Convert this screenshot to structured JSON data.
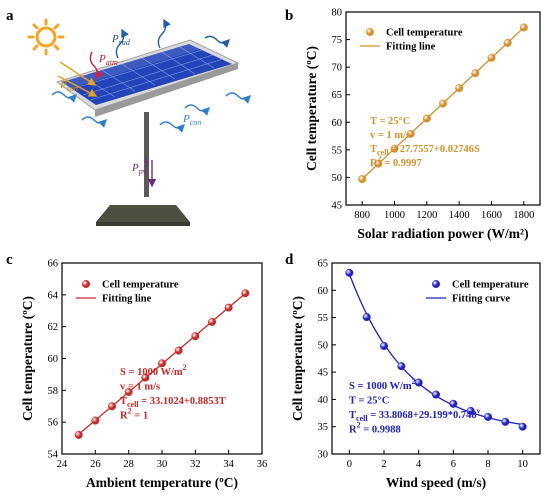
{
  "panels": [
    {
      "id": "a",
      "letter": "a"
    },
    {
      "id": "b",
      "letter": "b"
    },
    {
      "id": "c",
      "letter": "c"
    },
    {
      "id": "d",
      "letter": "d"
    }
  ],
  "illustration": {
    "labels": {
      "rad": {
        "main": "P",
        "sub": "rad"
      },
      "atm": {
        "main": "P",
        "sub": "atm"
      },
      "sun": {
        "main": "P",
        "sub": "sun"
      },
      "con": {
        "main": "P",
        "sub": "con"
      },
      "pv": {
        "main": "P",
        "sub": "pv"
      }
    },
    "colors": {
      "sun": "#f5a623",
      "panel": "#2344b8",
      "panel_frame": "#c9c9c9",
      "arrow_rad": "#1f5fa8",
      "arrow_atm": "#d21f3c",
      "arrow_sun": "#e8a020",
      "arrow_con": "#2f7fd0",
      "arrow_pv": "#6b2a8a",
      "pole": "#5a5a5a",
      "base": "#4a4f3f"
    }
  },
  "chart_data": [
    {
      "panel": "b",
      "type": "scatter",
      "color": "#d4902a",
      "xlabel": "Solar radiation power (W/m²)",
      "ylabel": "Cell temperature (ºC)",
      "xlim": [
        700,
        1900
      ],
      "ylim": [
        45,
        80
      ],
      "xticks": [
        800,
        1000,
        1200,
        1400,
        1600,
        1800
      ],
      "yticks": [
        45,
        50,
        55,
        60,
        65,
        70,
        75,
        80
      ],
      "series": [
        {
          "name": "Cell temperature",
          "type": "points",
          "x": [
            800,
            900,
            1000,
            1100,
            1200,
            1300,
            1400,
            1500,
            1600,
            1700,
            1800
          ],
          "y": [
            49.7,
            52.5,
            55.2,
            57.9,
            60.7,
            63.4,
            66.2,
            68.9,
            71.7,
            74.4,
            77.2
          ]
        }
      ],
      "fit": {
        "name": "Fitting line",
        "x": [
          800,
          1800
        ],
        "y": [
          49.72,
          77.18
        ]
      },
      "legend": "top-left",
      "annotations": [
        {
          "main": "T = 25°C"
        },
        {
          "main": "v = 1 m/s"
        },
        {
          "main": "T",
          "sub": "cell",
          "rest": " = 27.7557+0.02746S"
        },
        {
          "main": "R",
          "sup": "2",
          "rest": " = 0.9997"
        }
      ]
    },
    {
      "panel": "c",
      "type": "scatter",
      "color": "#c82828",
      "xlabel": "Ambient temperature (ºC)",
      "ylabel": "Cell temperature (ºC)",
      "xlim": [
        24,
        36
      ],
      "ylim": [
        54,
        66
      ],
      "xticks": [
        24,
        26,
        28,
        30,
        32,
        34,
        36
      ],
      "yticks": [
        54,
        56,
        58,
        60,
        62,
        64,
        66
      ],
      "series": [
        {
          "name": "Cell temperature",
          "type": "points",
          "x": [
            25,
            26,
            27,
            28,
            29,
            30,
            31,
            32,
            33,
            34,
            35
          ],
          "y": [
            55.2,
            56.1,
            57.0,
            57.9,
            58.8,
            59.7,
            60.5,
            61.4,
            62.3,
            63.2,
            64.1
          ]
        }
      ],
      "fit": {
        "name": "Fitting line",
        "x": [
          25,
          35
        ],
        "y": [
          55.23,
          64.09
        ]
      },
      "legend": "top-left",
      "annotations": [
        {
          "main": "S = 1000 W/m",
          "sup": "2"
        },
        {
          "main": "v = 1 m/s"
        },
        {
          "main": "T",
          "sub": "cell",
          "rest": " = 33.1024+0.8853T"
        },
        {
          "main": "R",
          "sup": "2",
          "rest": " = 1"
        }
      ]
    },
    {
      "panel": "d",
      "type": "scatter",
      "color": "#2020c8",
      "xlabel": "Wind speed (m/s)",
      "ylabel": "Cell temperature (ºC)",
      "xlim": [
        -1,
        11
      ],
      "ylim": [
        30,
        65
      ],
      "xticks": [
        0,
        2,
        4,
        6,
        8,
        10
      ],
      "yticks": [
        30,
        35,
        40,
        45,
        50,
        55,
        60,
        65
      ],
      "series": [
        {
          "name": "Cell temperature",
          "type": "points",
          "x": [
            0,
            1,
            2,
            3,
            4,
            5,
            6,
            7,
            8,
            9,
            10
          ],
          "y": [
            63.2,
            55.1,
            49.8,
            46.1,
            43.1,
            40.9,
            39.2,
            37.9,
            36.8,
            35.9,
            35.0
          ]
        }
      ],
      "fit": {
        "name": "Fitting curve",
        "model": "exp",
        "a": 33.8068,
        "b": 29.199,
        "c": 0.748,
        "x_range": [
          0,
          10
        ]
      },
      "legend": "top-right",
      "annotations": [
        {
          "main": "S = 1000 W/m",
          "sup": "2"
        },
        {
          "main": "T = 25°C"
        },
        {
          "main": "T",
          "sub": "cell",
          "rest": " = 33.8068+29.199*0.748",
          "sup2": "v"
        },
        {
          "main": "R",
          "sup": "2",
          "rest": " = 0.9988"
        }
      ]
    }
  ]
}
